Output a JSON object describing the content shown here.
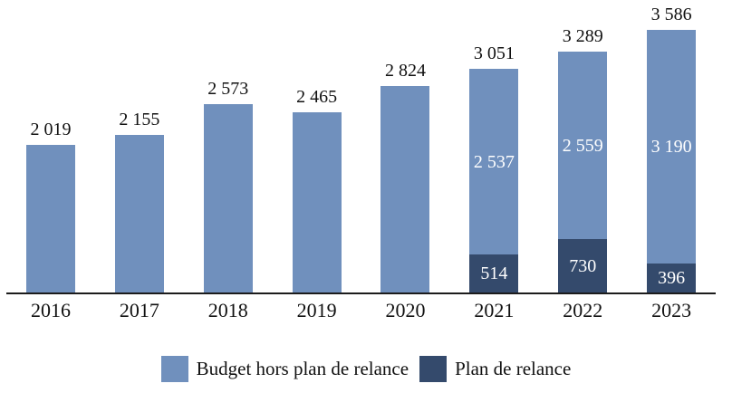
{
  "chart_data": {
    "type": "bar",
    "stacked": true,
    "categories": [
      "2016",
      "2017",
      "2018",
      "2019",
      "2020",
      "2021",
      "2022",
      "2023"
    ],
    "series": [
      {
        "name": "Budget hors plan de relance",
        "color": "#7090BD",
        "values": [
          2019,
          2155,
          2573,
          2465,
          2824,
          2537,
          2559,
          3190
        ],
        "labels": [
          "",
          "",
          "",
          "",
          "",
          "2 537",
          "2 559",
          "3 190"
        ]
      },
      {
        "name": "Plan de relance",
        "color": "#344A6C",
        "values": [
          0,
          0,
          0,
          0,
          0,
          514,
          730,
          396
        ],
        "labels": [
          "",
          "",
          "",
          "",
          "",
          "514",
          "730",
          "396"
        ]
      }
    ],
    "stack_order_top_to_bottom": [
      "Budget hors plan de relance",
      "Plan de relance"
    ],
    "totals": [
      2019,
      2155,
      2573,
      2465,
      2824,
      3051,
      3289,
      3586
    ],
    "total_labels": [
      "2 019",
      "2 155",
      "2 573",
      "2 465",
      "2 824",
      "3 051",
      "3 289",
      "3 586"
    ],
    "title": "",
    "xlabel": "",
    "ylabel": "",
    "ylim": [
      0,
      3586
    ],
    "grid": false,
    "legend_position": "bottom",
    "label_color_inside": "#ffffff",
    "label_color_outside": "#111111",
    "axis_line_color": "#1c1c1c"
  }
}
